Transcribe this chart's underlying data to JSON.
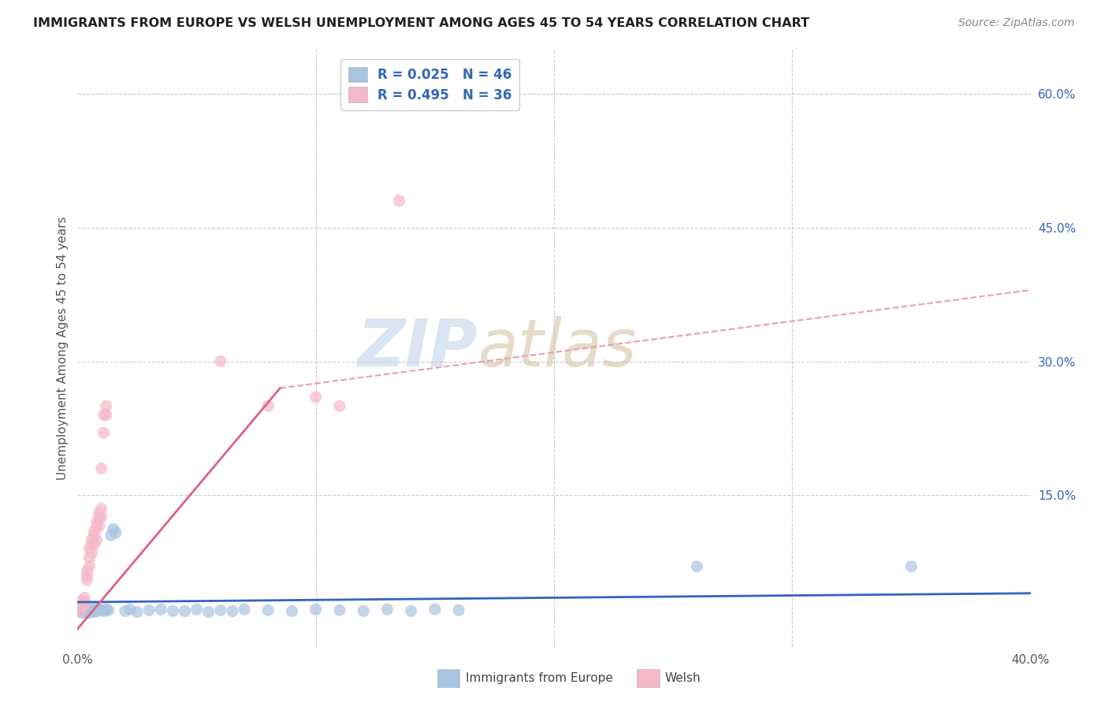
{
  "title": "IMMIGRANTS FROM EUROPE VS WELSH UNEMPLOYMENT AMONG AGES 45 TO 54 YEARS CORRELATION CHART",
  "source": "Source: ZipAtlas.com",
  "ylabel": "Unemployment Among Ages 45 to 54 years",
  "xlim": [
    0.0,
    0.4
  ],
  "ylim": [
    -0.02,
    0.65
  ],
  "x_ticks": [
    0.0,
    0.1,
    0.2,
    0.3,
    0.4
  ],
  "x_tick_labels": [
    "0.0%",
    "",
    "",
    "",
    "40.0%"
  ],
  "y_ticks_right": [
    0.0,
    0.15,
    0.3,
    0.45,
    0.6
  ],
  "y_tick_labels_right": [
    "",
    "15.0%",
    "30.0%",
    "45.0%",
    "60.0%"
  ],
  "blue_scatter": [
    [
      0.001,
      0.02
    ],
    [
      0.002,
      0.022
    ],
    [
      0.002,
      0.018
    ],
    [
      0.003,
      0.021
    ],
    [
      0.003,
      0.019
    ],
    [
      0.004,
      0.022
    ],
    [
      0.004,
      0.02
    ],
    [
      0.005,
      0.018
    ],
    [
      0.005,
      0.021
    ],
    [
      0.006,
      0.02
    ],
    [
      0.006,
      0.022
    ],
    [
      0.007,
      0.019
    ],
    [
      0.007,
      0.021
    ],
    [
      0.008,
      0.023
    ],
    [
      0.008,
      0.02
    ],
    [
      0.009,
      0.022
    ],
    [
      0.01,
      0.021
    ],
    [
      0.011,
      0.02
    ],
    [
      0.012,
      0.022
    ],
    [
      0.013,
      0.021
    ],
    [
      0.014,
      0.105
    ],
    [
      0.015,
      0.112
    ],
    [
      0.016,
      0.108
    ],
    [
      0.02,
      0.02
    ],
    [
      0.022,
      0.022
    ],
    [
      0.025,
      0.019
    ],
    [
      0.03,
      0.021
    ],
    [
      0.035,
      0.022
    ],
    [
      0.04,
      0.02
    ],
    [
      0.045,
      0.02
    ],
    [
      0.05,
      0.022
    ],
    [
      0.055,
      0.019
    ],
    [
      0.06,
      0.021
    ],
    [
      0.065,
      0.02
    ],
    [
      0.07,
      0.022
    ],
    [
      0.08,
      0.021
    ],
    [
      0.09,
      0.02
    ],
    [
      0.1,
      0.022
    ],
    [
      0.11,
      0.021
    ],
    [
      0.12,
      0.02
    ],
    [
      0.13,
      0.022
    ],
    [
      0.14,
      0.02
    ],
    [
      0.15,
      0.022
    ],
    [
      0.16,
      0.021
    ],
    [
      0.26,
      0.07
    ],
    [
      0.35,
      0.07
    ]
  ],
  "pink_scatter": [
    [
      0.001,
      0.02
    ],
    [
      0.002,
      0.025
    ],
    [
      0.002,
      0.032
    ],
    [
      0.003,
      0.028
    ],
    [
      0.003,
      0.035
    ],
    [
      0.003,
      0.03
    ],
    [
      0.004,
      0.055
    ],
    [
      0.004,
      0.06
    ],
    [
      0.004,
      0.065
    ],
    [
      0.005,
      0.07
    ],
    [
      0.005,
      0.08
    ],
    [
      0.005,
      0.09
    ],
    [
      0.006,
      0.095
    ],
    [
      0.006,
      0.085
    ],
    [
      0.006,
      0.1
    ],
    [
      0.007,
      0.095
    ],
    [
      0.007,
      0.105
    ],
    [
      0.007,
      0.11
    ],
    [
      0.008,
      0.1
    ],
    [
      0.008,
      0.115
    ],
    [
      0.008,
      0.12
    ],
    [
      0.009,
      0.115
    ],
    [
      0.009,
      0.13
    ],
    [
      0.009,
      0.125
    ],
    [
      0.01,
      0.135
    ],
    [
      0.01,
      0.125
    ],
    [
      0.01,
      0.18
    ],
    [
      0.011,
      0.22
    ],
    [
      0.011,
      0.24
    ],
    [
      0.012,
      0.24
    ],
    [
      0.012,
      0.25
    ],
    [
      0.06,
      0.3
    ],
    [
      0.08,
      0.25
    ],
    [
      0.1,
      0.26
    ],
    [
      0.11,
      0.25
    ],
    [
      0.135,
      0.48
    ]
  ],
  "blue_line": {
    "x0": 0.0,
    "x1": 0.4,
    "y0": 0.03,
    "y1": 0.04
  },
  "pink_line_solid": {
    "x0": 0.0,
    "x1": 0.085,
    "y0": 0.0,
    "y1": 0.27
  },
  "pink_line_dashed": {
    "x0": 0.085,
    "x1": 0.4,
    "y0": 0.27,
    "y1": 0.38
  },
  "bg_color": "#ffffff",
  "scatter_blue_color": "#a8c4e0",
  "scatter_pink_color": "#f5b8c8",
  "line_blue_color": "#3366bb",
  "line_pink_solid_color": "#e06080",
  "line_pink_dashed_color": "#e8a0b0",
  "grid_color": "#cccccc",
  "watermark_zip_color": "#c0d4e8",
  "watermark_atlas_color": "#d4c8b8",
  "title_fontsize": 11.5,
  "source_fontsize": 10,
  "tick_fontsize": 11,
  "ylabel_fontsize": 11,
  "right_tick_color": "#3366bb",
  "legend_blue_color": "#a8c4e0",
  "legend_pink_color": "#f5b8c8",
  "legend_text_color": "#3366bb"
}
